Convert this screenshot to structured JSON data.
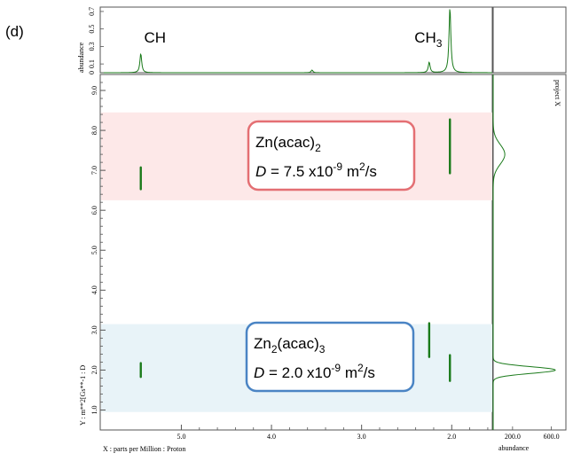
{
  "panel_label": "(d)",
  "chart_data": {
    "type": "DOSY 2D NMR",
    "x_axis": {
      "label": "X : parts per Million : Proton",
      "range": [
        5.9,
        1.55
      ],
      "reversed": true,
      "ticks": [
        "5.0",
        "4.0",
        "3.0",
        "2.0"
      ]
    },
    "y_axis": {
      "label": "Y : m**2[Gs**-1 : D",
      "range": [
        0.5,
        9.4
      ],
      "ticks": [
        "1.0",
        "2.0",
        "3.0",
        "4.0",
        "5.0",
        "6.0",
        "7.0",
        "8.0",
        "9.0"
      ]
    },
    "top_projection": {
      "axis_label": "abundance",
      "range": [
        0,
        0.75
      ],
      "ticks": [
        "0",
        "0.1",
        "0.3",
        "0.5",
        "0.7"
      ],
      "peaks": [
        {
          "ppm": 5.45,
          "height": 0.22,
          "label": "CH"
        },
        {
          "ppm": 3.55,
          "height": 0.03
        },
        {
          "ppm": 2.25,
          "height": 0.12
        },
        {
          "ppm": 2.02,
          "height": 0.75,
          "label_main": "CH",
          "label_sub": "3"
        }
      ]
    },
    "right_projection": {
      "title": "project X",
      "axis_label": "abundance",
      "range": [
        0,
        750
      ],
      "ticks": [
        "200.0",
        "600.0"
      ],
      "peaks": [
        {
          "d": 2.0,
          "intensity": 640
        },
        {
          "d": 7.4,
          "intensity": 120
        }
      ]
    },
    "cross_peaks": [
      {
        "ppm": 5.45,
        "d_min": 6.5,
        "d_max": 7.1
      },
      {
        "ppm": 2.02,
        "d_min": 6.9,
        "d_max": 8.3
      },
      {
        "ppm": 5.45,
        "d_min": 1.8,
        "d_max": 2.2
      },
      {
        "ppm": 2.25,
        "d_min": 2.3,
        "d_max": 3.2
      },
      {
        "ppm": 2.02,
        "d_min": 1.7,
        "d_max": 2.4
      }
    ],
    "bands": [
      {
        "name": "Zn(acac)2",
        "d_min": 6.25,
        "d_max": 8.45,
        "color": "#fde8e8",
        "border": "#e46f73",
        "line1": {
          "main": "Zn(acac)",
          "sub": "2"
        },
        "line2": {
          "sym": "D",
          "eq": " = 7.5 x10",
          "exp": "-9",
          "unit": " m",
          "unit_exp": "2",
          "tail": "/s"
        }
      },
      {
        "name": "Zn2(acac)3",
        "d_min": 0.95,
        "d_max": 3.15,
        "color": "#e8f3f8",
        "border": "#4a84c4",
        "line1": {
          "main": "Zn",
          "sub": "2",
          "mid": "(acac)",
          "sub2": "3"
        },
        "line2": {
          "sym": "D",
          "eq": " = 2.0 x10",
          "exp": "-9",
          "unit": " m",
          "unit_exp": "2",
          "tail": "/s"
        }
      }
    ],
    "colors": {
      "peak": "#1a7a1a",
      "frame": "#555555"
    }
  }
}
